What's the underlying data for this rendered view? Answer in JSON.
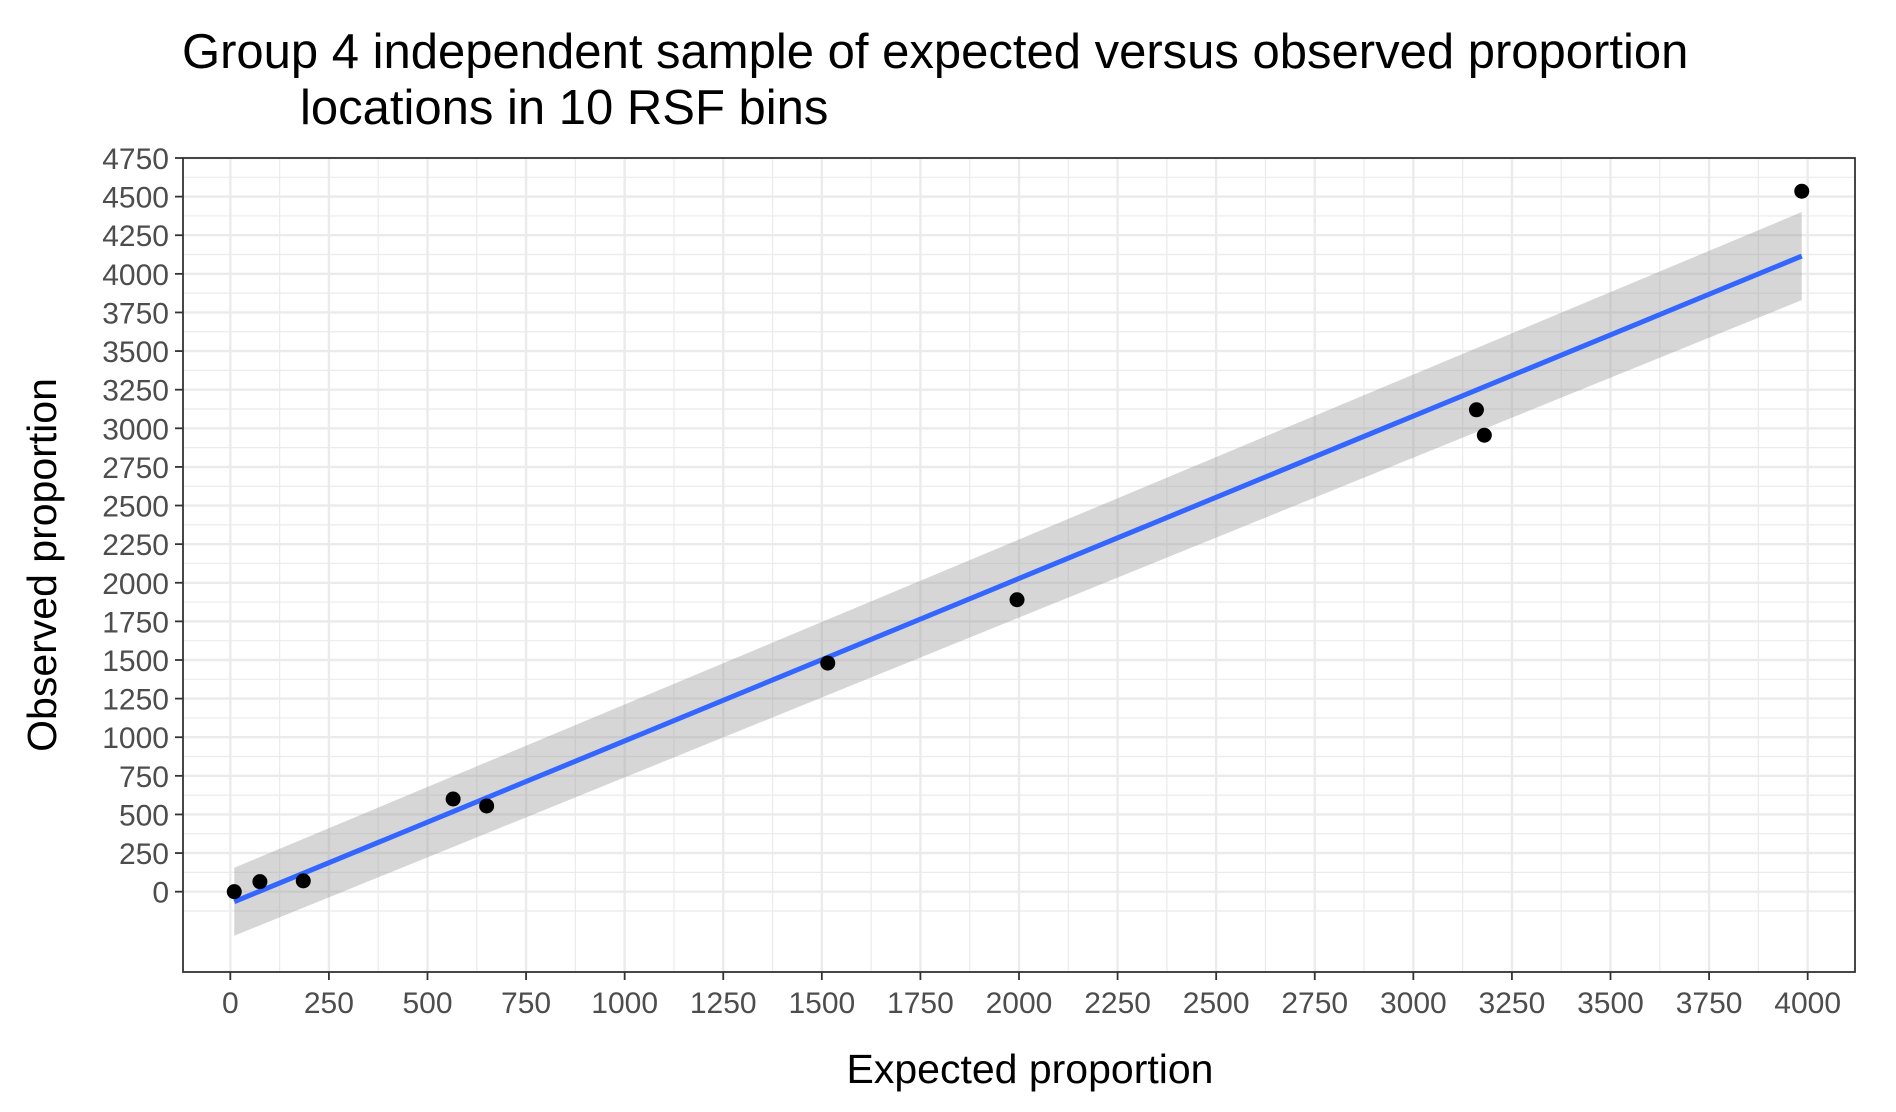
{
  "chart_data": {
    "type": "scatter",
    "title": "Group 4 independent sample of expected versus observed proportion",
    "subtitle": "locations in 10 RSF bins",
    "xlabel": "Expected proportion",
    "ylabel": "Observed proportion",
    "xlim": [
      -120,
      4120
    ],
    "ylim": [
      -520,
      4750
    ],
    "x_ticks": [
      0,
      250,
      500,
      750,
      1000,
      1250,
      1500,
      1750,
      2000,
      2250,
      2500,
      2750,
      3000,
      3250,
      3500,
      3750,
      4000
    ],
    "y_ticks": [
      0,
      250,
      500,
      750,
      1000,
      1250,
      1500,
      1750,
      2000,
      2250,
      2500,
      2750,
      3000,
      3250,
      3500,
      3750,
      4000,
      4250,
      4500,
      4750
    ],
    "grid": true,
    "points": [
      {
        "x": 10,
        "y": 0
      },
      {
        "x": 75,
        "y": 65
      },
      {
        "x": 185,
        "y": 70
      },
      {
        "x": 565,
        "y": 600
      },
      {
        "x": 650,
        "y": 555
      },
      {
        "x": 1515,
        "y": 1480
      },
      {
        "x": 1995,
        "y": 1890
      },
      {
        "x": 3160,
        "y": 3120
      },
      {
        "x": 3180,
        "y": 2955
      },
      {
        "x": 3985,
        "y": 4535
      }
    ],
    "fit": {
      "type": "linear",
      "x_range": [
        10,
        3985
      ],
      "start": {
        "y": -65,
        "lower": -285,
        "upper": 155
      },
      "end": {
        "y": 4115,
        "lower": 3830,
        "upper": 4400
      }
    },
    "colors": {
      "points": "#000000",
      "fit_line": "#3366ff",
      "confidence_band": "#999999",
      "grid": "#ebebeb",
      "panel_border": "#333333"
    }
  }
}
